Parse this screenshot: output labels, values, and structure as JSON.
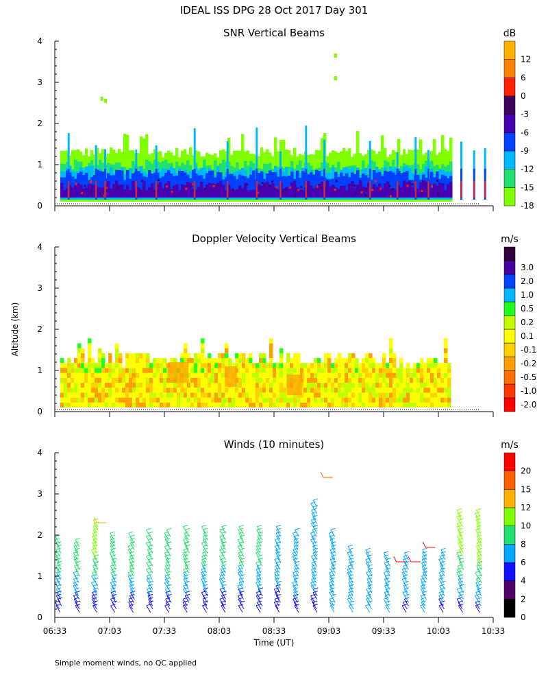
{
  "figure_title": "IDEAL ISS DPG  28 Oct 2017 Day 301",
  "footnote": "Simple moment winds, no QC applied",
  "time_axis": {
    "label": "Time (UT)",
    "range_minutes": [
      393,
      633
    ],
    "ticks": [
      {
        "m": 393,
        "label": "06:33"
      },
      {
        "m": 423,
        "label": "07:03"
      },
      {
        "m": 453,
        "label": "07:33"
      },
      {
        "m": 483,
        "label": "08:03"
      },
      {
        "m": 513,
        "label": "08:33"
      },
      {
        "m": 543,
        "label": "09:03"
      },
      {
        "m": 573,
        "label": "09:33"
      },
      {
        "m": 603,
        "label": "10:03"
      },
      {
        "m": 633,
        "label": "10:33"
      }
    ]
  },
  "altitude_axis": {
    "label": "Altitude (km)",
    "range": [
      0,
      4
    ],
    "ticks": [
      "0",
      "1",
      "2",
      "3",
      "4"
    ]
  },
  "chart_data": [
    {
      "type": "heatmap",
      "title": "SNR Vertical Beams",
      "colorbar": {
        "unit": "dB",
        "colors": [
          "#80ff00",
          "#20e070",
          "#00b8ff",
          "#0040ff",
          "#4800b0",
          "#400060",
          "#ff2000",
          "#ff8000",
          "#ffb000"
        ],
        "labels": [
          "-18",
          "-15",
          "-12",
          "-9",
          "-6",
          "-3",
          "0",
          "6",
          "12"
        ]
      },
      "layers": [
        {
          "alt": [
            0.1,
            1.3
          ],
          "color": "#80ff00",
          "min_alt": 0.1
        },
        {
          "alt": [
            0.15,
            1.0
          ],
          "color": "#20e070"
        },
        {
          "alt": [
            0.15,
            0.85
          ],
          "color": "#00b8ff"
        },
        {
          "alt": [
            0.2,
            0.75
          ],
          "color": "#0040ff"
        },
        {
          "alt": [
            0.2,
            0.5
          ],
          "color": "#4800b0"
        }
      ],
      "spikes_minutes": [
        400,
        415,
        420,
        437,
        448,
        469,
        487,
        503,
        516,
        530,
        540,
        565,
        580,
        590,
        597,
        615,
        622,
        628
      ],
      "note": "noisy SNR field; values in dB"
    },
    {
      "type": "heatmap",
      "title": "Doppler Velocity Vertical Beams",
      "colorbar": {
        "unit": "m/s",
        "colors": [
          "#ff0000",
          "#ff3800",
          "#ff7000",
          "#ffa000",
          "#ffd000",
          "#ffff00",
          "#c0ff00",
          "#20ff20",
          "#00b8ff",
          "#0040ff",
          "#4800a0",
          "#300040"
        ],
        "labels": [
          "-2.0",
          "-1.0",
          "-0.5",
          "-0.2",
          "-0.1",
          "0.1",
          "0.2",
          "0.5",
          "1.0",
          "2.0",
          "3.0",
          ""
        ]
      },
      "note": "mostly weak downward motion (-0.2 to 0.1 m/s) from 0.1 to ~1.3 km"
    },
    {
      "type": "barbs",
      "title": "Winds (10 minutes)",
      "colorbar": {
        "unit": "m/s",
        "colors": [
          "#000000",
          "#50006a",
          "#1010ff",
          "#00a8ff",
          "#20e070",
          "#80ff00",
          "#ffb000",
          "#ff6000",
          "#ff0000"
        ],
        "labels": [
          "0",
          "2",
          "4",
          "6",
          "8",
          "10",
          "12",
          "15",
          "20"
        ]
      },
      "profiles": [
        {
          "t": 396,
          "top": 1.85,
          "speed_low": 4,
          "speed_high": 9
        },
        {
          "t": 406,
          "top": 1.8,
          "speed_low": 4,
          "speed_high": 9
        },
        {
          "t": 416,
          "top": 2.25,
          "speed_low": 4,
          "speed_high": 11
        },
        {
          "t": 426,
          "top": 1.95,
          "speed_low": 4,
          "speed_high": 10
        },
        {
          "t": 436,
          "top": 1.95,
          "speed_low": 4,
          "speed_high": 10
        },
        {
          "t": 446,
          "top": 2.0,
          "speed_low": 4,
          "speed_high": 10
        },
        {
          "t": 456,
          "top": 2.0,
          "speed_low": 4,
          "speed_high": 10
        },
        {
          "t": 466,
          "top": 2.05,
          "speed_low": 4,
          "speed_high": 10
        },
        {
          "t": 476,
          "top": 2.1,
          "speed_low": 4,
          "speed_high": 9
        },
        {
          "t": 486,
          "top": 2.1,
          "speed_low": 4,
          "speed_high": 9
        },
        {
          "t": 496,
          "top": 2.05,
          "speed_low": 4,
          "speed_high": 9
        },
        {
          "t": 506,
          "top": 2.05,
          "speed_low": 4,
          "speed_high": 9
        },
        {
          "t": 516,
          "top": 2.05,
          "speed_low": 4,
          "speed_high": 8
        },
        {
          "t": 526,
          "top": 2.0,
          "speed_low": 5,
          "speed_high": 8
        },
        {
          "t": 536,
          "top": 2.7,
          "speed_low": 5,
          "speed_high": 8
        },
        {
          "t": 546,
          "top": 2.0,
          "speed_low": 6,
          "speed_high": 8
        },
        {
          "t": 556,
          "top": 1.6,
          "speed_low": 6,
          "speed_high": 8
        },
        {
          "t": 566,
          "top": 1.5,
          "speed_low": 6,
          "speed_high": 8
        },
        {
          "t": 576,
          "top": 1.45,
          "speed_low": 6,
          "speed_high": 8
        },
        {
          "t": 586,
          "top": 1.45,
          "speed_low": 5,
          "speed_high": 8
        },
        {
          "t": 596,
          "top": 1.5,
          "speed_low": 6,
          "speed_high": 8
        },
        {
          "t": 606,
          "top": 1.55,
          "speed_low": 5,
          "speed_high": 8
        },
        {
          "t": 616,
          "top": 2.45,
          "speed_low": 5,
          "speed_high": 11
        },
        {
          "t": 626,
          "top": 2.45,
          "speed_low": 5,
          "speed_high": 12
        }
      ]
    }
  ]
}
